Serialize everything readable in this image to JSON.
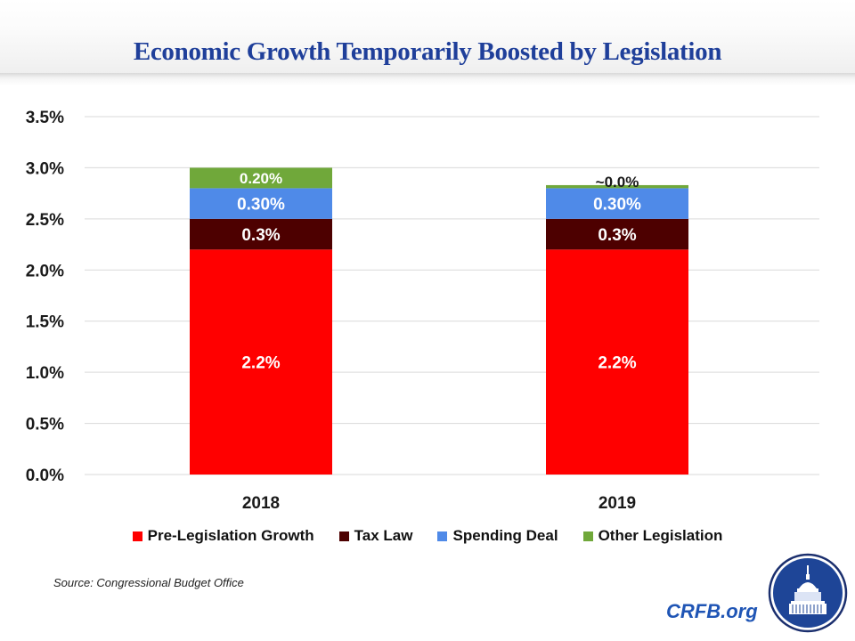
{
  "header": {
    "title": "Economic Growth Temporarily Boosted by Legislation"
  },
  "chart_data": {
    "type": "bar",
    "stacked": true,
    "title": "Economic Growth Temporarily Boosted by Legislation",
    "xlabel": "",
    "ylabel": "",
    "categories": [
      "2018",
      "2019"
    ],
    "series": [
      {
        "name": "Pre-Legislation Growth",
        "color": "#ff0000",
        "values": [
          2.2,
          2.2
        ],
        "labels": [
          "2.2%",
          "2.2%"
        ]
      },
      {
        "name": "Tax Law",
        "color": "#4d0000",
        "values": [
          0.3,
          0.3
        ],
        "labels": [
          "0.3%",
          "0.3%"
        ]
      },
      {
        "name": "Spending Deal",
        "color": "#4f8ae8",
        "values": [
          0.3,
          0.3
        ],
        "labels": [
          "0.30%",
          "0.30%"
        ]
      },
      {
        "name": "Other Legislation",
        "color": "#70a83a",
        "values": [
          0.2,
          0.03
        ],
        "labels": [
          "0.20%",
          "~0.0%"
        ]
      }
    ],
    "ylim": [
      0,
      3.5
    ],
    "yticks": [
      "0.0%",
      "0.5%",
      "1.0%",
      "1.5%",
      "2.0%",
      "2.5%",
      "3.0%",
      "3.5%"
    ],
    "ytick_values": [
      0,
      0.5,
      1.0,
      1.5,
      2.0,
      2.5,
      3.0,
      3.5
    ],
    "grid": true,
    "legend_position": "bottom"
  },
  "footer": {
    "source": "Source: Congressional Budget Office",
    "site": "CRFB.org",
    "logo": "capitol-dome-logo"
  }
}
